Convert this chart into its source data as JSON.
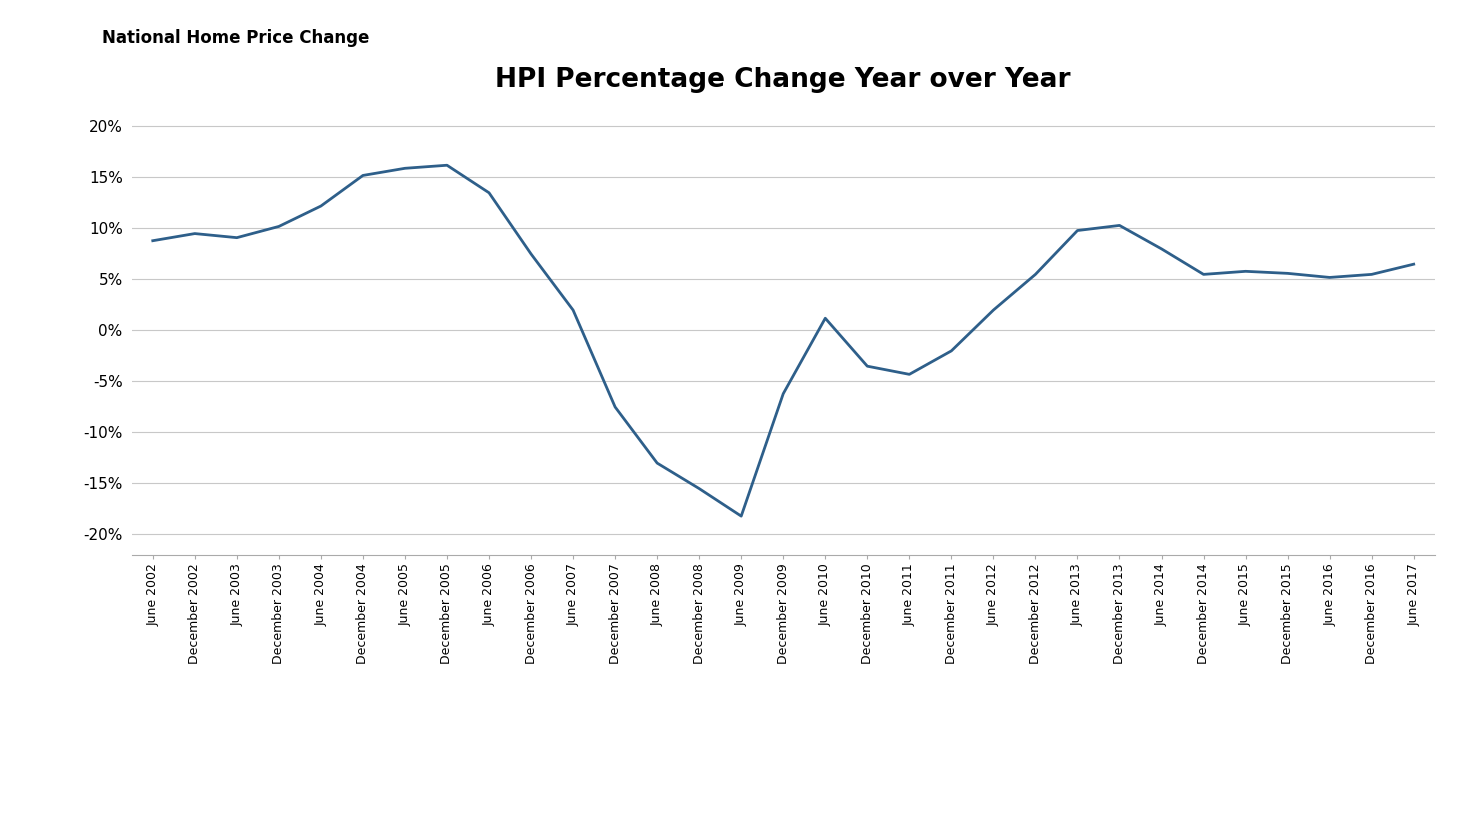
{
  "title": "HPI Percentage Change Year over Year",
  "suptitle": "National Home Price Change",
  "line_color": "#2E5F8A",
  "line_width": 2.0,
  "background_color": "#ffffff",
  "ylim": [
    -0.22,
    0.22
  ],
  "yticks": [
    -0.2,
    -0.15,
    -0.1,
    -0.05,
    0.0,
    0.05,
    0.1,
    0.15,
    0.2
  ],
  "tick_label_color": "#000000",
  "labels": [
    "June 2002",
    "December 2002",
    "June 2003",
    "December 2003",
    "June 2004",
    "December 2004",
    "June 2005",
    "December 2005",
    "June 2006",
    "December 2006",
    "June 2007",
    "December 2007",
    "June 2008",
    "December 2008",
    "June 2009",
    "December 2009",
    "June 2010",
    "December 2010",
    "June 2011",
    "December 2011",
    "June 2012",
    "December 2012",
    "June 2013",
    "December 2013",
    "June 2014",
    "December 2014",
    "June 2015",
    "December 2015",
    "June 2016",
    "December 2016",
    "June 2017"
  ],
  "values": [
    0.088,
    0.095,
    0.091,
    0.102,
    0.122,
    0.152,
    0.159,
    0.162,
    0.135,
    0.075,
    0.02,
    -0.075,
    -0.13,
    -0.155,
    -0.182,
    -0.062,
    0.012,
    -0.035,
    -0.043,
    -0.02,
    0.02,
    0.055,
    0.098,
    0.103,
    0.08,
    0.055,
    0.058,
    0.056,
    0.052,
    0.055,
    0.065
  ]
}
